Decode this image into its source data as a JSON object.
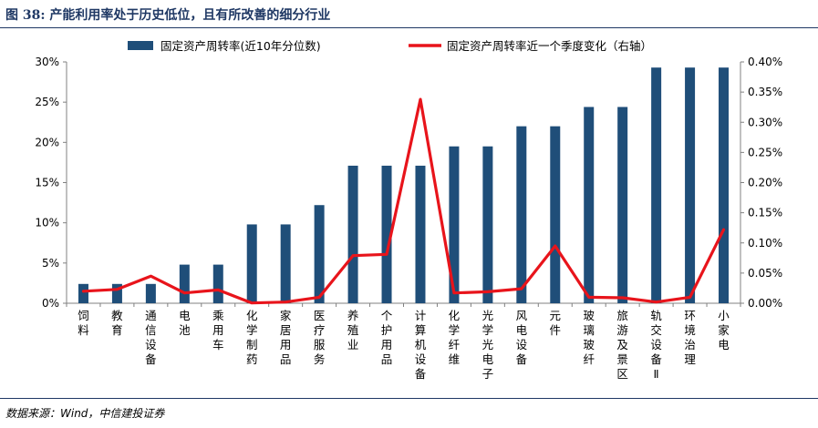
{
  "header": {
    "title": "图 38:  产能利用率处于历史低位，且有所改善的细分行业"
  },
  "footer": {
    "source": "数据来源：Wind，中信建投证券"
  },
  "chart_data": {
    "type": "bar",
    "title": "",
    "categories": [
      "饲料",
      "教育",
      "通信设备",
      "电池",
      "乘用车",
      "化学制药",
      "家居用品",
      "医疗服务",
      "养殖业",
      "个护用品",
      "计算机设备",
      "化学纤维",
      "光学光电子",
      "风电设备",
      "元件",
      "玻璃玻纤",
      "旅游及景区",
      "轨交设备Ⅱ",
      "环境治理",
      "小家电"
    ],
    "series": [
      {
        "name": "固定资产周转率(近10年分位数)",
        "type": "bar",
        "axis": "left",
        "color": "#1f4e79",
        "values": [
          2.4,
          2.4,
          2.4,
          4.8,
          4.8,
          9.8,
          9.8,
          12.2,
          17.1,
          17.1,
          17.1,
          19.5,
          19.5,
          22.0,
          22.0,
          24.4,
          24.4,
          29.3,
          29.3,
          29.3
        ]
      },
      {
        "name": "固定资产周转率近一个季度变化（右轴）",
        "type": "line",
        "axis": "right",
        "color": "#e8141b",
        "values": [
          0.02,
          0.023,
          0.045,
          0.017,
          0.022,
          0.0005,
          0.002,
          0.01,
          0.079,
          0.081,
          0.338,
          0.017,
          0.019,
          0.024,
          0.095,
          0.01,
          0.009,
          0.002,
          0.01,
          0.122
        ]
      }
    ],
    "y_left": {
      "min": 0,
      "max": 30,
      "ticks": [
        "0%",
        "5%",
        "10%",
        "15%",
        "20%",
        "25%",
        "30%"
      ]
    },
    "y_right": {
      "min": 0,
      "max": 0.4,
      "ticks": [
        "0.00%",
        "0.05%",
        "0.10%",
        "0.15%",
        "0.20%",
        "0.25%",
        "0.30%",
        "0.35%",
        "0.40%"
      ]
    },
    "grid": false,
    "legend": "top"
  }
}
